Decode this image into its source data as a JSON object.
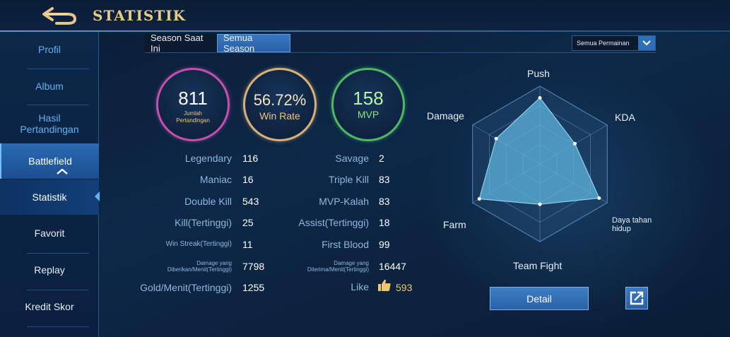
{
  "header": {
    "title": "STATISTIK"
  },
  "sidebar": {
    "items": [
      {
        "label": "Profil"
      },
      {
        "label": "Album"
      },
      {
        "label": "Hasil Pertandingan"
      },
      {
        "label": "Battlefield"
      },
      {
        "label": "Statistik"
      },
      {
        "label": "Favorit"
      },
      {
        "label": "Replay"
      },
      {
        "label": "Kredit Skor"
      }
    ]
  },
  "tabs": {
    "current_season": "Season Saat Ini",
    "all_seasons": "Semua Season"
  },
  "mode_select": {
    "value": "Semua Permainan"
  },
  "summary": {
    "matches": {
      "value": "811",
      "label": "Jumlah Pertandingan"
    },
    "winrate": {
      "value": "56.72%",
      "label": "Win Rate"
    },
    "mvp": {
      "value": "158",
      "label": "MVP"
    }
  },
  "stats_left": [
    {
      "label": "Legendary",
      "value": "116"
    },
    {
      "label": "Maniac",
      "value": "16"
    },
    {
      "label": "Double Kill",
      "value": "543"
    },
    {
      "label": "Kill(Tertinggi)",
      "value": "25"
    },
    {
      "label": "Win Streak(Tertinggi)",
      "value": "11"
    },
    {
      "label": "Damage yang Diberikan/Menit(Tertinggi)",
      "value": "7798"
    },
    {
      "label": "Gold/Menit(Tertinggi)",
      "value": "1255"
    }
  ],
  "stats_right": [
    {
      "label": "Savage",
      "value": "2"
    },
    {
      "label": "Triple Kill",
      "value": "83"
    },
    {
      "label": "MVP-Kalah",
      "value": "83"
    },
    {
      "label": "Assist(Tertinggi)",
      "value": "18"
    },
    {
      "label": "First Blood",
      "value": "99"
    },
    {
      "label": "Damage yang Diterima/Menit(Tertinggi)",
      "value": "16447"
    },
    {
      "label": "Like",
      "value": "593"
    }
  ],
  "radar": {
    "axes": [
      "Push",
      "KDA",
      "Daya tahan hidup",
      "Team Fight",
      "Farm",
      "Damage"
    ],
    "levels": [
      0.85,
      0.52,
      0.88,
      0.52,
      0.9,
      0.65
    ]
  },
  "buttons": {
    "detail": "Detail"
  },
  "colors": {
    "accent": "#2f6fb8",
    "title_gold": "#e8c98a",
    "radar_fill": "#5fb4dc"
  }
}
